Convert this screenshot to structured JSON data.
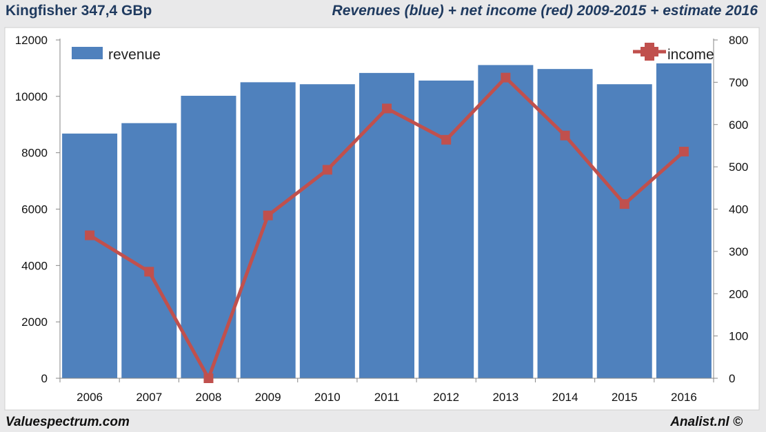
{
  "header": {
    "stock": "Kingfisher 347,4 GBp",
    "title": "Revenues (blue) + net income (red) 2009-2015 + estimate 2016"
  },
  "footer": {
    "left": "Valuespectrum.com",
    "right": "Analist.nl ©"
  },
  "chart_data": {
    "type": "bar",
    "title": "Revenues (blue) + net income (red) 2009-2015 + estimate 2016",
    "categories": [
      "2006",
      "2007",
      "2008",
      "2009",
      "2010",
      "2011",
      "2012",
      "2013",
      "2014",
      "2015",
      "2016"
    ],
    "series": [
      {
        "name": "revenue",
        "type": "bar",
        "axis": "left",
        "color": "#4f81bd",
        "values": [
          8680,
          9050,
          10020,
          10500,
          10430,
          10830,
          10560,
          11110,
          10970,
          10430,
          11170
        ]
      },
      {
        "name": "income",
        "type": "line",
        "axis": "right",
        "color": "#c0504d",
        "values": [
          338,
          252,
          0,
          385,
          493,
          638,
          564,
          711,
          574,
          412,
          536
        ]
      }
    ],
    "y_left": {
      "min": 0,
      "max": 12000,
      "ticks": [
        "0",
        "2000",
        "4000",
        "6000",
        "8000",
        "10000",
        "12000"
      ]
    },
    "y_right": {
      "min": 0,
      "max": 800,
      "ticks": [
        "0",
        "100",
        "200",
        "300",
        "400",
        "500",
        "600",
        "700",
        "800"
      ]
    },
    "legend": {
      "revenue": "revenue",
      "income": "income"
    },
    "colors": {
      "bar": "#4f81bd",
      "line": "#c0504d",
      "panel": "#ffffff",
      "axis": "#868686"
    }
  }
}
